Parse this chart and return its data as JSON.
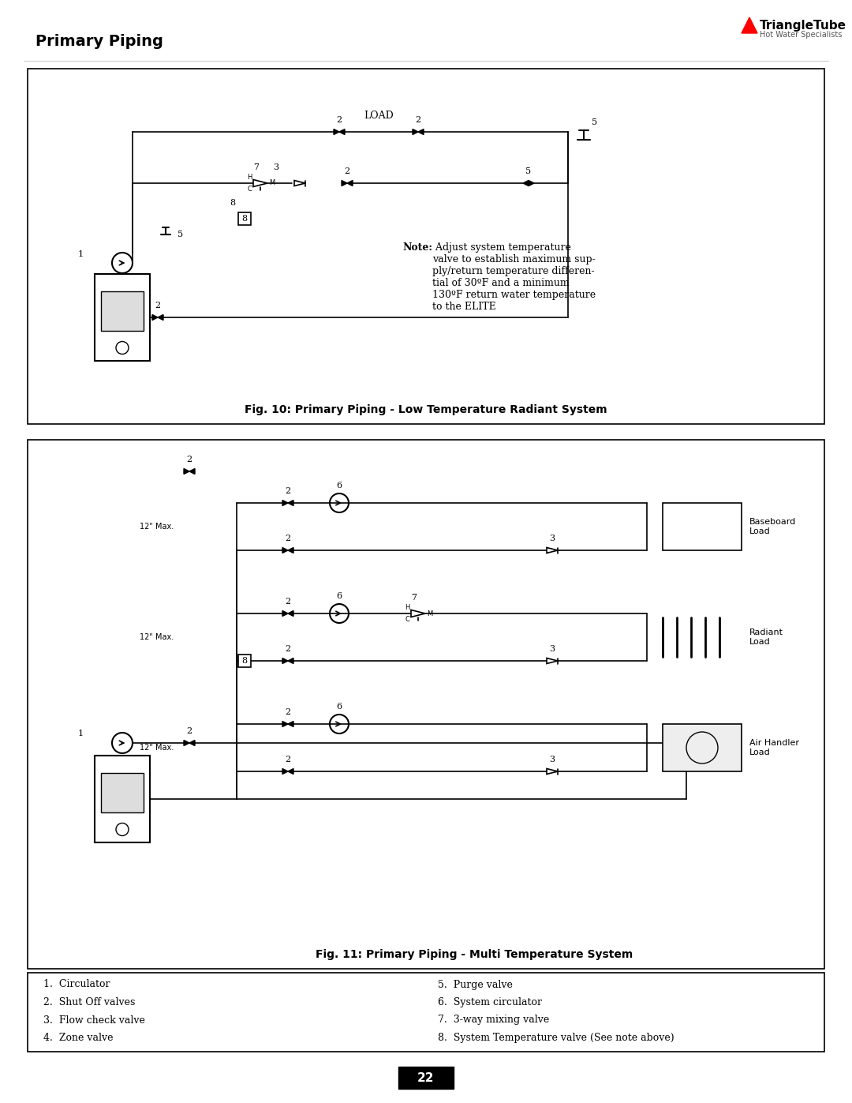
{
  "page_title": "Primary Piping",
  "logo_text": "TriangleTube",
  "logo_subtitle": "Hot Water Specialists",
  "fig10_title": "Fig. 10: Primary Piping - Low Temperature Radiant System",
  "fig11_title": "Fig. 11: Primary Piping - Multi Temperature System",
  "note_text": "Note: Adjust system temperature valve to establish maximum supply/return temperature differential of 30ºF and a minimum 130ºF return water temperature to the ELITE",
  "legend_items_left": [
    "1.  Circulator",
    "2.  Shut Off valves",
    "3.  Flow check valve",
    "4.  Zone valve"
  ],
  "legend_items_right": [
    "5.  Purge valve",
    "6.  System circulator",
    "7.  3-way mixing valve",
    "8.  System Temperature valve (See note above)"
  ],
  "page_number": "22",
  "background_color": "#ffffff",
  "box_color": "#000000",
  "line_color": "#000000",
  "gray_line": "#cccccc"
}
